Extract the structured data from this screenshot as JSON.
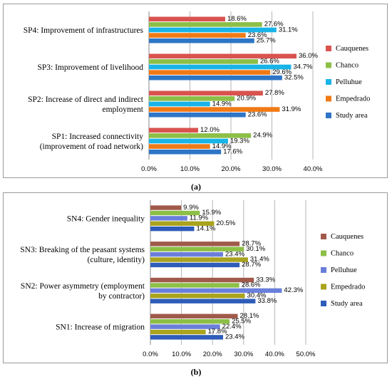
{
  "chart_data": [
    {
      "type": "bar",
      "orientation": "horizontal",
      "caption": "(a)",
      "categories": [
        [
          "SP4:  Improvement of infrastructures"
        ],
        [
          "SP3: Improvement of livelihood"
        ],
        [
          "SP2: Increase of direct and indirect",
          "employment"
        ],
        [
          "SP1: Increased connectivity",
          "(improvement of road network)"
        ]
      ],
      "series": [
        {
          "name": "Cauquenes",
          "color": "#D9534F",
          "values": [
            18.6,
            36.0,
            27.8,
            12.0
          ],
          "labels": [
            "18.6%",
            "36.0%",
            "27.8%",
            "12.0%"
          ]
        },
        {
          "name": "Chanco",
          "color": "#8DBF47",
          "values": [
            27.6,
            26.6,
            20.9,
            24.9
          ],
          "labels": [
            "27.6%",
            "26.6%",
            "20.9%",
            "24.9%"
          ]
        },
        {
          "name": "Pelluhue",
          "color": "#18B4E8",
          "values": [
            31.1,
            34.7,
            14.9,
            19.3
          ],
          "labels": [
            "31.1%",
            "34.7%",
            "14.9%",
            "19.3%"
          ]
        },
        {
          "name": "Empedrado",
          "color": "#F07A16",
          "values": [
            23.6,
            29.6,
            31.9,
            14.9
          ],
          "labels": [
            "23.6%",
            "29.6%",
            "31.9%",
            "14.9%"
          ]
        },
        {
          "name": "Study area",
          "color": "#2E75C6",
          "values": [
            25.7,
            32.5,
            23.6,
            17.6
          ],
          "labels": [
            "25.7%",
            "32.5%",
            "23.6%",
            "17.6%"
          ]
        }
      ],
      "xlim": [
        0,
        40
      ],
      "ticks": [
        "0.0%",
        "10.0%",
        "20.0%",
        "30.0%",
        "40.0%"
      ],
      "grid": "vertical",
      "legend": "right"
    },
    {
      "type": "bar",
      "orientation": "horizontal",
      "caption": "(b)",
      "categories": [
        [
          "SN4: Gender inequality"
        ],
        [
          "SN3: Breaking of the peasant systems",
          "(culture, identity)"
        ],
        [
          "SN2: Power asymmetry (employment",
          "by contractor)"
        ],
        [
          "SN1: Increase of migration"
        ]
      ],
      "series": [
        {
          "name": "Cauquenes",
          "color": "#A0594A",
          "values": [
            9.9,
            28.7,
            33.3,
            28.1
          ],
          "labels": [
            "9.9%",
            "28.7%",
            "33.3%",
            "28.1%"
          ]
        },
        {
          "name": "Chanco",
          "color": "#8DBF47",
          "values": [
            15.9,
            30.1,
            28.6,
            25.5
          ],
          "labels": [
            "15.9%",
            "30.1%",
            "28.6%",
            "25.5%"
          ]
        },
        {
          "name": "Pelluhue",
          "color": "#6A7FDB",
          "values": [
            11.9,
            23.4,
            42.3,
            22.4
          ],
          "labels": [
            "11.9%",
            "23.4%",
            "42.3%",
            "22.4%"
          ]
        },
        {
          "name": "Empedrado",
          "color": "#A9A31D",
          "values": [
            20.5,
            31.4,
            30.4,
            17.8
          ],
          "labels": [
            "20.5%",
            "31.4%",
            "30.4%",
            "17.8%"
          ]
        },
        {
          "name": "Study area",
          "color": "#2E5CB8",
          "values": [
            14.1,
            28.7,
            33.8,
            23.4
          ],
          "labels": [
            "14.1%",
            "28.7%",
            "33.8%",
            "23.4%"
          ]
        }
      ],
      "xlim": [
        0,
        50
      ],
      "ticks": [
        "0.0%",
        "10.0%",
        "20.0%",
        "30.0%",
        "40.0%",
        "50.0%"
      ],
      "grid": "vertical",
      "legend": "right"
    }
  ]
}
